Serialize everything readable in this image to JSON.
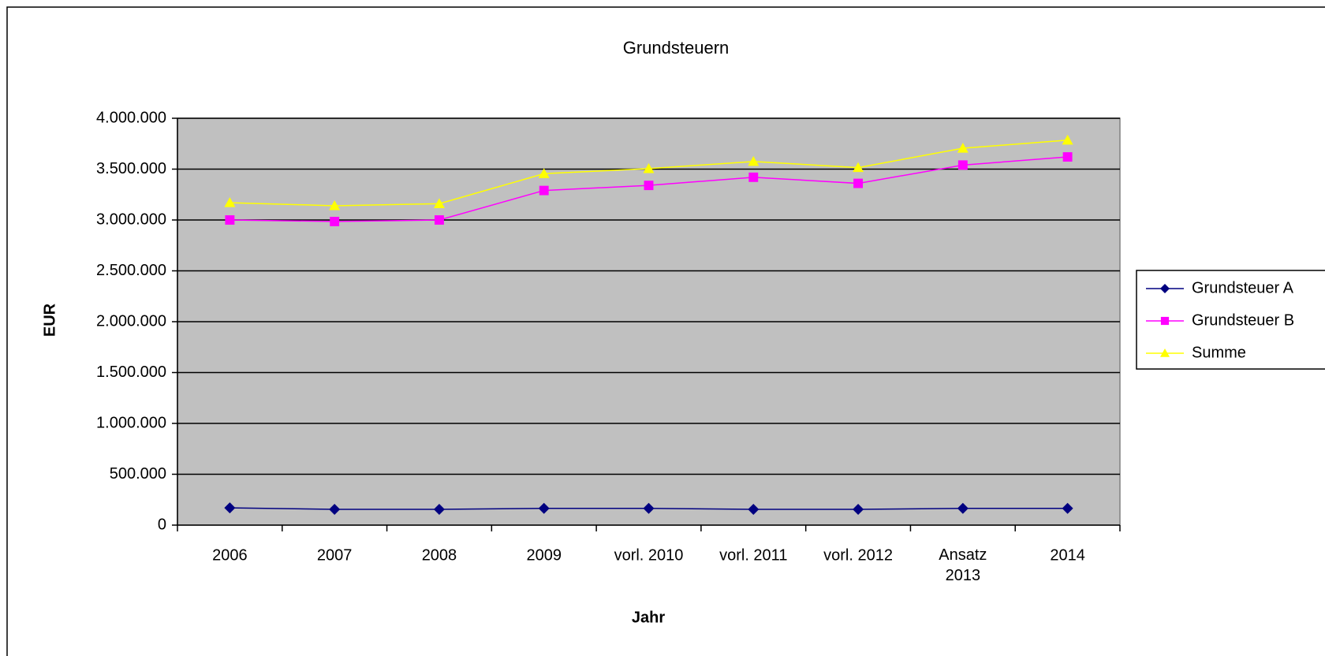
{
  "chart_data": {
    "type": "line",
    "title": "Grundsteuern",
    "xlabel": "Jahr",
    "ylabel": "EUR",
    "categories": [
      "2006",
      "2007",
      "2008",
      "2009",
      "vorl. 2010",
      "vorl. 2011",
      "vorl. 2012",
      "Ansatz\n2013",
      "2014"
    ],
    "series": [
      {
        "name": "Grundsteuer A",
        "color": "#000080",
        "marker": "diamond",
        "values": [
          170000,
          155000,
          155000,
          165000,
          165000,
          155000,
          155000,
          165000,
          165000
        ]
      },
      {
        "name": "Grundsteuer B",
        "color": "#ff00ff",
        "marker": "square",
        "values": [
          3000000,
          2985000,
          3000000,
          3290000,
          3340000,
          3420000,
          3360000,
          3540000,
          3620000
        ]
      },
      {
        "name": "Summe",
        "color": "#ffff00",
        "marker": "triangle",
        "values": [
          3170000,
          3140000,
          3160000,
          3455000,
          3505000,
          3575000,
          3515000,
          3705000,
          3785000
        ]
      }
    ],
    "ylim": [
      0,
      4000000
    ],
    "yticks": [
      0,
      {
        "value": 500000,
        "label": "500.000"
      },
      {
        "value": 1000000,
        "label": "1.000.000"
      },
      {
        "value": 1500000,
        "label": "1.500.000"
      },
      {
        "value": 2000000,
        "label": "2.000.000"
      },
      {
        "value": 2500000,
        "label": "2.500.000"
      },
      {
        "value": 3000000,
        "label": "3.000.000"
      },
      {
        "value": 3500000,
        "label": "3.500.000"
      },
      {
        "value": 4000000,
        "label": "4.000.000"
      }
    ],
    "grid": true,
    "plot_background": "#c0c0c0",
    "legend": "right"
  }
}
